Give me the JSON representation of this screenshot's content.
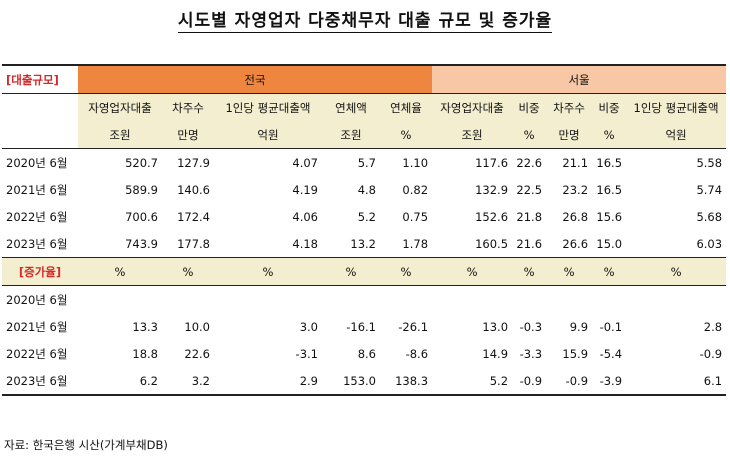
{
  "title": "시도별 자영업자 다중채무자 대출 규모 및 증가율",
  "section_loan": "[대출규모]",
  "section_growth": "[증가율]",
  "group_national": "전국",
  "group_seoul": "서울",
  "headers": [
    {
      "top": "자영업자대출",
      "unit": "조원"
    },
    {
      "top": "차주수",
      "unit": "만명"
    },
    {
      "top": "1인당 평균대출액",
      "unit": "억원"
    },
    {
      "top": "연체액",
      "unit": "조원"
    },
    {
      "top": "연체율",
      "unit": "%"
    },
    {
      "top": "자영업자대출",
      "unit": "조원"
    },
    {
      "top": "비중",
      "unit": "%"
    },
    {
      "top": "차주수",
      "unit": "만명"
    },
    {
      "top": "비중",
      "unit": "%"
    },
    {
      "top": "1인당 평균대출액",
      "unit": "억원"
    }
  ],
  "loan_rows": [
    {
      "label": "2020년 6월",
      "values": [
        "520.7",
        "127.9",
        "4.07",
        "5.7",
        "1.10",
        "117.6",
        "22.6",
        "21.1",
        "16.5",
        "5.58"
      ]
    },
    {
      "label": "2021년 6월",
      "values": [
        "589.9",
        "140.6",
        "4.19",
        "4.8",
        "0.82",
        "132.9",
        "22.5",
        "23.2",
        "16.5",
        "5.74"
      ]
    },
    {
      "label": "2022년 6월",
      "values": [
        "700.6",
        "172.4",
        "4.06",
        "5.2",
        "0.75",
        "152.6",
        "21.8",
        "26.8",
        "15.6",
        "5.68"
      ]
    },
    {
      "label": "2023년 6월",
      "values": [
        "743.9",
        "177.8",
        "4.18",
        "13.2",
        "1.78",
        "160.5",
        "21.6",
        "26.6",
        "15.0",
        "6.03"
      ]
    }
  ],
  "growth_units": [
    "%",
    "%",
    "%",
    "%",
    "%",
    "%",
    "%",
    "%",
    "%",
    "%"
  ],
  "growth_rows": [
    {
      "label": "2020년 6월",
      "values": [
        "",
        "",
        "",
        "",
        "",
        "",
        "",
        "",
        "",
        ""
      ]
    },
    {
      "label": "2021년 6월",
      "values": [
        "13.3",
        "10.0",
        "3.0",
        "-16.1",
        "-26.1",
        "13.0",
        "-0.3",
        "9.9",
        "-0.1",
        "2.8"
      ]
    },
    {
      "label": "2022년 6월",
      "values": [
        "18.8",
        "22.6",
        "-3.1",
        "8.6",
        "-8.6",
        "14.9",
        "-3.3",
        "15.9",
        "-5.4",
        "-0.9"
      ]
    },
    {
      "label": "2023년 6월",
      "values": [
        "6.2",
        "3.2",
        "2.9",
        "153.0",
        "138.3",
        "5.2",
        "-0.9",
        "-0.9",
        "-3.9",
        "6.1"
      ]
    }
  ],
  "source": "자료: 한국은행 시산(가계부채DB)"
}
